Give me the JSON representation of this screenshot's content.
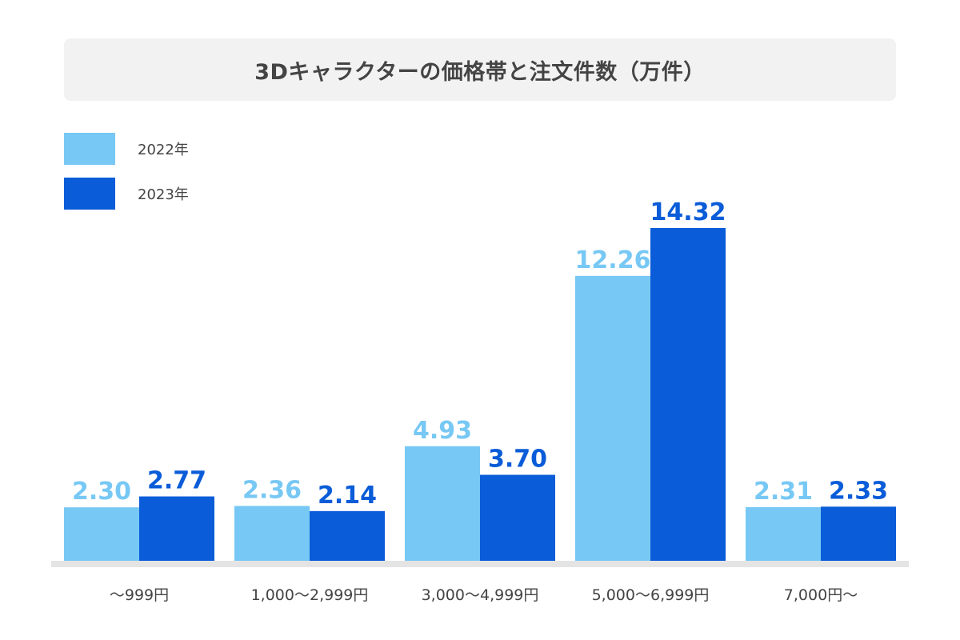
{
  "chart_data": {
    "type": "bar",
    "title": "3Dキャラクターの価格帯と注文件数（万件）",
    "xlabel": "",
    "ylabel": "",
    "categories": [
      "〜999円",
      "1,000〜2,999円",
      "3,000〜4,999円",
      "5,000〜6,999円",
      "7,000円〜"
    ],
    "series": [
      {
        "name": "2022年",
        "color": "#77c8f4",
        "values": [
          2.3,
          2.36,
          4.93,
          12.26,
          2.31
        ],
        "labels": [
          "2.30",
          "2.36",
          "4.93",
          "12.26",
          "2.31"
        ]
      },
      {
        "name": "2023年",
        "color": "#0a5cd8",
        "values": [
          2.77,
          2.14,
          3.7,
          14.32,
          2.33
        ],
        "labels": [
          "2.77",
          "2.14",
          "3.70",
          "14.32",
          "2.33"
        ]
      }
    ],
    "ylim": [
      0,
      14.32
    ],
    "grid": false,
    "legend_position": "top-left",
    "baseline_color": "#e4e4e4"
  }
}
